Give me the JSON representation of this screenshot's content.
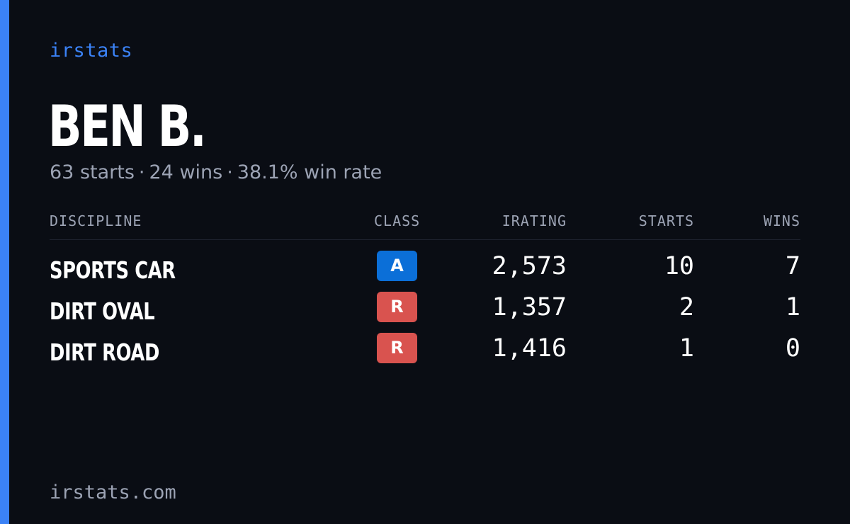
{
  "brand": "irstats",
  "driver": {
    "name": "BEN B.",
    "starts": "63 starts",
    "wins": "24 wins",
    "win_rate": "38.1% win rate",
    "separator": "·"
  },
  "table": {
    "headers": {
      "discipline": "DISCIPLINE",
      "class": "CLASS",
      "irating": "IRATING",
      "starts": "STARTS",
      "wins": "WINS"
    },
    "rows": [
      {
        "discipline": "SPORTS CAR",
        "class": "A",
        "irating": "2,573",
        "starts": "10",
        "wins": "7"
      },
      {
        "discipline": "DIRT OVAL",
        "class": "R",
        "irating": "1,357",
        "starts": "2",
        "wins": "1"
      },
      {
        "discipline": "DIRT ROAD",
        "class": "R",
        "irating": "1,416",
        "starts": "1",
        "wins": "0"
      }
    ]
  },
  "colors": {
    "accent": "#3b82f6",
    "background": "#0a0d14",
    "class_a": "#0b6fd8",
    "class_r": "#d9534f",
    "muted_text": "#9ca3b4"
  },
  "footer": "irstats.com"
}
